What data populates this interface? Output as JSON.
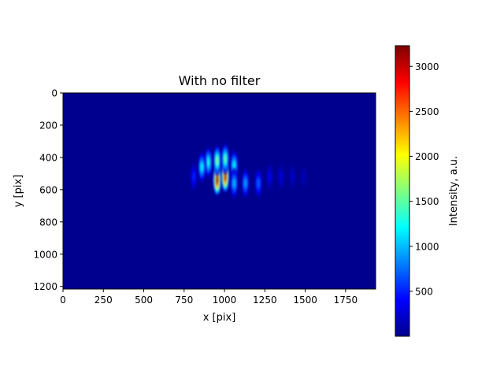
{
  "chart_data": [
    {
      "type": "heatmap",
      "title": "With no filter",
      "xlabel": "x [pix]",
      "ylabel": "y [pix]",
      "xlim": [
        0,
        1936
      ],
      "ylim": [
        1216,
        0
      ],
      "x_ticks": [
        0,
        250,
        500,
        750,
        1000,
        1250,
        1500,
        1750
      ],
      "y_ticks": [
        0,
        200,
        400,
        600,
        800,
        1000,
        1200
      ],
      "background_value": 20,
      "peaks": [
        {
          "x": 955,
          "y": 540,
          "value": 3200
        },
        {
          "x": 1005,
          "y": 520,
          "value": 3100
        },
        {
          "x": 955,
          "y": 420,
          "value": 1600
        },
        {
          "x": 1005,
          "y": 410,
          "value": 1500
        },
        {
          "x": 900,
          "y": 430,
          "value": 1300
        },
        {
          "x": 860,
          "y": 460,
          "value": 1200
        },
        {
          "x": 1060,
          "y": 450,
          "value": 1200
        },
        {
          "x": 1060,
          "y": 560,
          "value": 1000
        },
        {
          "x": 1130,
          "y": 560,
          "value": 900
        },
        {
          "x": 1210,
          "y": 560,
          "value": 700
        },
        {
          "x": 1280,
          "y": 520,
          "value": 350
        },
        {
          "x": 1350,
          "y": 520,
          "value": 300
        },
        {
          "x": 1420,
          "y": 520,
          "value": 250
        },
        {
          "x": 1490,
          "y": 520,
          "value": 200
        },
        {
          "x": 810,
          "y": 520,
          "value": 500
        }
      ],
      "colormap": "jet"
    },
    {
      "type": "colorbar",
      "label": "Intensity, a.u.",
      "range": [
        0,
        3230
      ],
      "ticks": [
        500,
        1000,
        1500,
        2000,
        2500,
        3000
      ]
    }
  ]
}
